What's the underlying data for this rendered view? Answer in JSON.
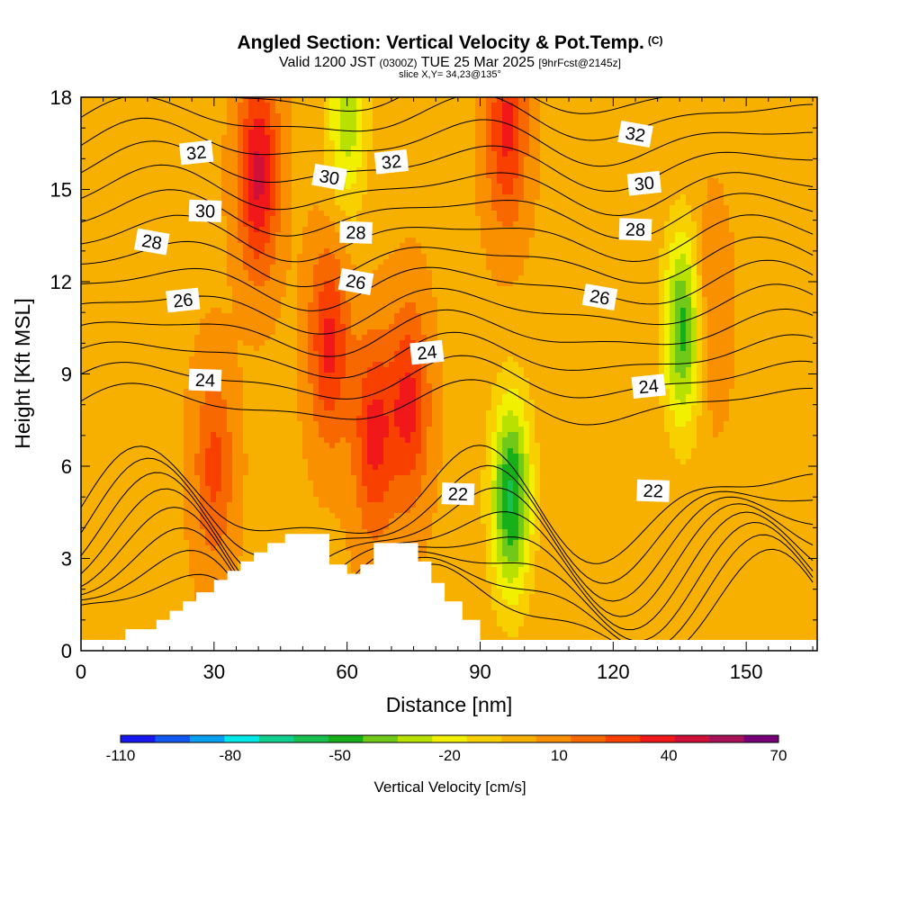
{
  "title": {
    "main": "Angled Section: Vertical Velocity & Pot.Temp.",
    "flag": "(C)",
    "valid_prefix": "Valid 1200 JST",
    "valid_utc": "(0300Z)",
    "valid_date": "TUE 25 Mar 2025",
    "forecast": "[9hrFcst@2145z]",
    "slice": "slice X,Y= 34,23@135°"
  },
  "chart_data": {
    "type": "heatmap",
    "title": "Angled Section: Vertical Velocity & Pot.Temp.",
    "xlabel": "Distance [nm]",
    "ylabel": "Height [Kft MSL]",
    "xlim": [
      0,
      166
    ],
    "ylim": [
      0,
      18
    ],
    "x_ticks": [
      0,
      30,
      60,
      90,
      120,
      150
    ],
    "y_ticks": [
      0,
      3,
      6,
      9,
      12,
      15,
      18
    ],
    "colorbar": {
      "label": "Vertical Velocity [cm/s]",
      "min": -110,
      "max": 70,
      "step": 10,
      "tick_labels": [
        "-110",
        "-80",
        "-50",
        "-20",
        "10",
        "40",
        "70"
      ],
      "colors": [
        "#1818f0",
        "#1058f0",
        "#08a0f0",
        "#00e8e8",
        "#10d090",
        "#18c050",
        "#18b018",
        "#70c818",
        "#b8e000",
        "#f0f000",
        "#f8d000",
        "#f8b000",
        "#f89000",
        "#f86800",
        "#f84000",
        "#f01818",
        "#d01038",
        "#a81058",
        "#780078"
      ]
    },
    "vertical_velocity_features": [
      {
        "x": 40,
        "y": 15.5,
        "value": 45,
        "note": "upward core"
      },
      {
        "x": 56,
        "y": 10,
        "value": 35
      },
      {
        "x": 66,
        "y": 7,
        "value": 35
      },
      {
        "x": 74,
        "y": 8,
        "value": 35
      },
      {
        "x": 30,
        "y": 6,
        "value": 25
      },
      {
        "x": 97,
        "y": 5,
        "value": -60,
        "note": "downward core"
      },
      {
        "x": 60,
        "y": 17.5,
        "value": -35
      },
      {
        "x": 136,
        "y": 10.5,
        "value": -55
      },
      {
        "x": 96,
        "y": 17,
        "value": 35
      },
      {
        "x": 141,
        "y": 11,
        "value": 20
      }
    ],
    "potential_temperature_contours": {
      "levels": [
        22,
        24,
        26,
        28,
        30,
        32
      ],
      "labels": [
        {
          "text": "32",
          "x": 26,
          "y": 16.2
        },
        {
          "text": "30",
          "x": 28,
          "y": 14.3
        },
        {
          "text": "28",
          "x": 16,
          "y": 13.3
        },
        {
          "text": "26",
          "x": 23,
          "y": 11.4
        },
        {
          "text": "24",
          "x": 28,
          "y": 8.8
        },
        {
          "text": "30",
          "x": 56,
          "y": 15.4
        },
        {
          "text": "32",
          "x": 70,
          "y": 15.9
        },
        {
          "text": "28",
          "x": 62,
          "y": 13.6
        },
        {
          "text": "26",
          "x": 62,
          "y": 12.0
        },
        {
          "text": "24",
          "x": 78,
          "y": 9.7
        },
        {
          "text": "22",
          "x": 85,
          "y": 5.1
        },
        {
          "text": "32",
          "x": 125,
          "y": 16.8
        },
        {
          "text": "30",
          "x": 127,
          "y": 15.2
        },
        {
          "text": "28",
          "x": 125,
          "y": 13.7
        },
        {
          "text": "26",
          "x": 117,
          "y": 11.5
        },
        {
          "text": "24",
          "x": 128,
          "y": 8.6
        },
        {
          "text": "22",
          "x": 129,
          "y": 5.2
        }
      ]
    },
    "terrain_profile": {
      "x": [
        0,
        10,
        17,
        20,
        23,
        26,
        30,
        33,
        36,
        39,
        42,
        46,
        52,
        56,
        60,
        63,
        66,
        73,
        76,
        79,
        82,
        86,
        90,
        166
      ],
      "y": [
        0.35,
        0.7,
        1.0,
        1.3,
        1.6,
        1.9,
        2.3,
        2.6,
        2.9,
        3.2,
        3.5,
        3.8,
        3.8,
        2.8,
        2.5,
        2.8,
        3.5,
        3.5,
        2.9,
        2.2,
        1.6,
        1.0,
        0.35,
        0.35
      ]
    }
  }
}
